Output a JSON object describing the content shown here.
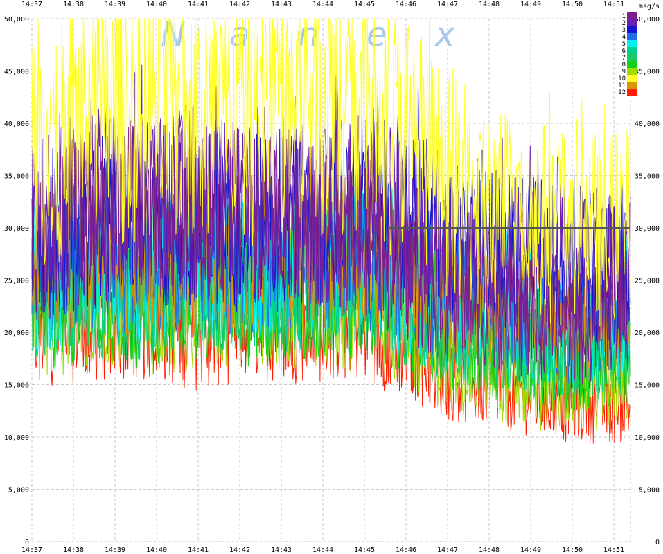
{
  "chart_data": {
    "type": "line",
    "title": "",
    "watermark_letters": [
      "N",
      "a",
      "n",
      "e",
      "x"
    ],
    "unit_label": "msg/s",
    "xlabel": "",
    "ylabel": "",
    "x_ticks": [
      "14:37",
      "14:38",
      "14:39",
      "14:40",
      "14:41",
      "14:42",
      "14:43",
      "14:44",
      "14:45",
      "14:46",
      "14:47",
      "14:48",
      "14:49",
      "14:50",
      "14:51"
    ],
    "x_range": [
      "14:37:00",
      "14:51:30"
    ],
    "ylim": [
      0,
      50000
    ],
    "y_ticks": [
      "0",
      "5,000",
      "10,000",
      "15,000",
      "20,000",
      "25,000",
      "30,000",
      "35,000",
      "40,000",
      "45,000",
      "50,000"
    ],
    "grid": true,
    "legend_position": "top-right",
    "reference_line_value": 30000,
    "series": [
      {
        "name": "1",
        "color": "#7d1f8c",
        "values": [
          27000,
          30000,
          32000,
          31000,
          33000,
          31000,
          30000,
          31000,
          30000,
          26000,
          24000,
          23000,
          21000,
          20000,
          22000
        ]
      },
      {
        "name": "2",
        "color": "#6b1fb0",
        "values": [
          30000,
          32000,
          33000,
          32000,
          32000,
          31000,
          32000,
          31000,
          33000,
          31000,
          29000,
          28000,
          27000,
          27000,
          26000
        ]
      },
      {
        "name": "3",
        "color": "#1414d2",
        "values": [
          29000,
          30000,
          31000,
          30000,
          31000,
          30000,
          31000,
          31000,
          32000,
          31000,
          29000,
          28000,
          27000,
          27000,
          26000
        ]
      },
      {
        "name": "4",
        "color": "#1e6ee6",
        "values": [
          26000,
          27000,
          28000,
          27000,
          28000,
          27000,
          28000,
          28000,
          28000,
          26000,
          24000,
          23000,
          22000,
          21000,
          22000
        ]
      },
      {
        "name": "5",
        "color": "#00f0f0",
        "values": [
          25000,
          26000,
          27000,
          26000,
          27000,
          26000,
          26000,
          27000,
          27000,
          25000,
          23000,
          22000,
          21000,
          20000,
          21000
        ]
      },
      {
        "name": "6",
        "color": "#00d28c",
        "values": [
          24000,
          25000,
          26000,
          25000,
          26000,
          25000,
          25000,
          26000,
          26000,
          24000,
          22000,
          21000,
          20000,
          19000,
          20000
        ]
      },
      {
        "name": "7",
        "color": "#1ec864",
        "values": [
          23000,
          24000,
          24000,
          24000,
          25000,
          24000,
          24000,
          25000,
          25000,
          23000,
          21000,
          20000,
          19000,
          18000,
          19000
        ]
      },
      {
        "name": "8",
        "color": "#14d214",
        "values": [
          22000,
          23000,
          23000,
          23000,
          24000,
          23000,
          23000,
          24000,
          24000,
          22000,
          20000,
          19000,
          18000,
          17000,
          18000
        ]
      },
      {
        "name": "9",
        "color": "#a0dc00",
        "values": [
          21000,
          22000,
          22000,
          22000,
          22000,
          22000,
          22000,
          23000,
          22000,
          20000,
          17000,
          16000,
          15000,
          14000,
          15000
        ]
      },
      {
        "name": "10",
        "color": "#ffff28",
        "values": [
          38000,
          40000,
          41000,
          42000,
          40000,
          41000,
          42000,
          43000,
          42000,
          39000,
          34000,
          32000,
          31000,
          30000,
          30000
        ]
      },
      {
        "name": "11",
        "color": "#dc9600",
        "values": [
          26000,
          28000,
          27000,
          28000,
          27000,
          27000,
          28000,
          28000,
          28000,
          26000,
          24000,
          23000,
          22000,
          21000,
          21000
        ]
      },
      {
        "name": "12",
        "color": "#ff1e00",
        "values": [
          20000,
          21000,
          21000,
          21000,
          20000,
          21000,
          21000,
          21000,
          21000,
          19000,
          16000,
          15000,
          14000,
          13000,
          13000
        ]
      }
    ]
  }
}
